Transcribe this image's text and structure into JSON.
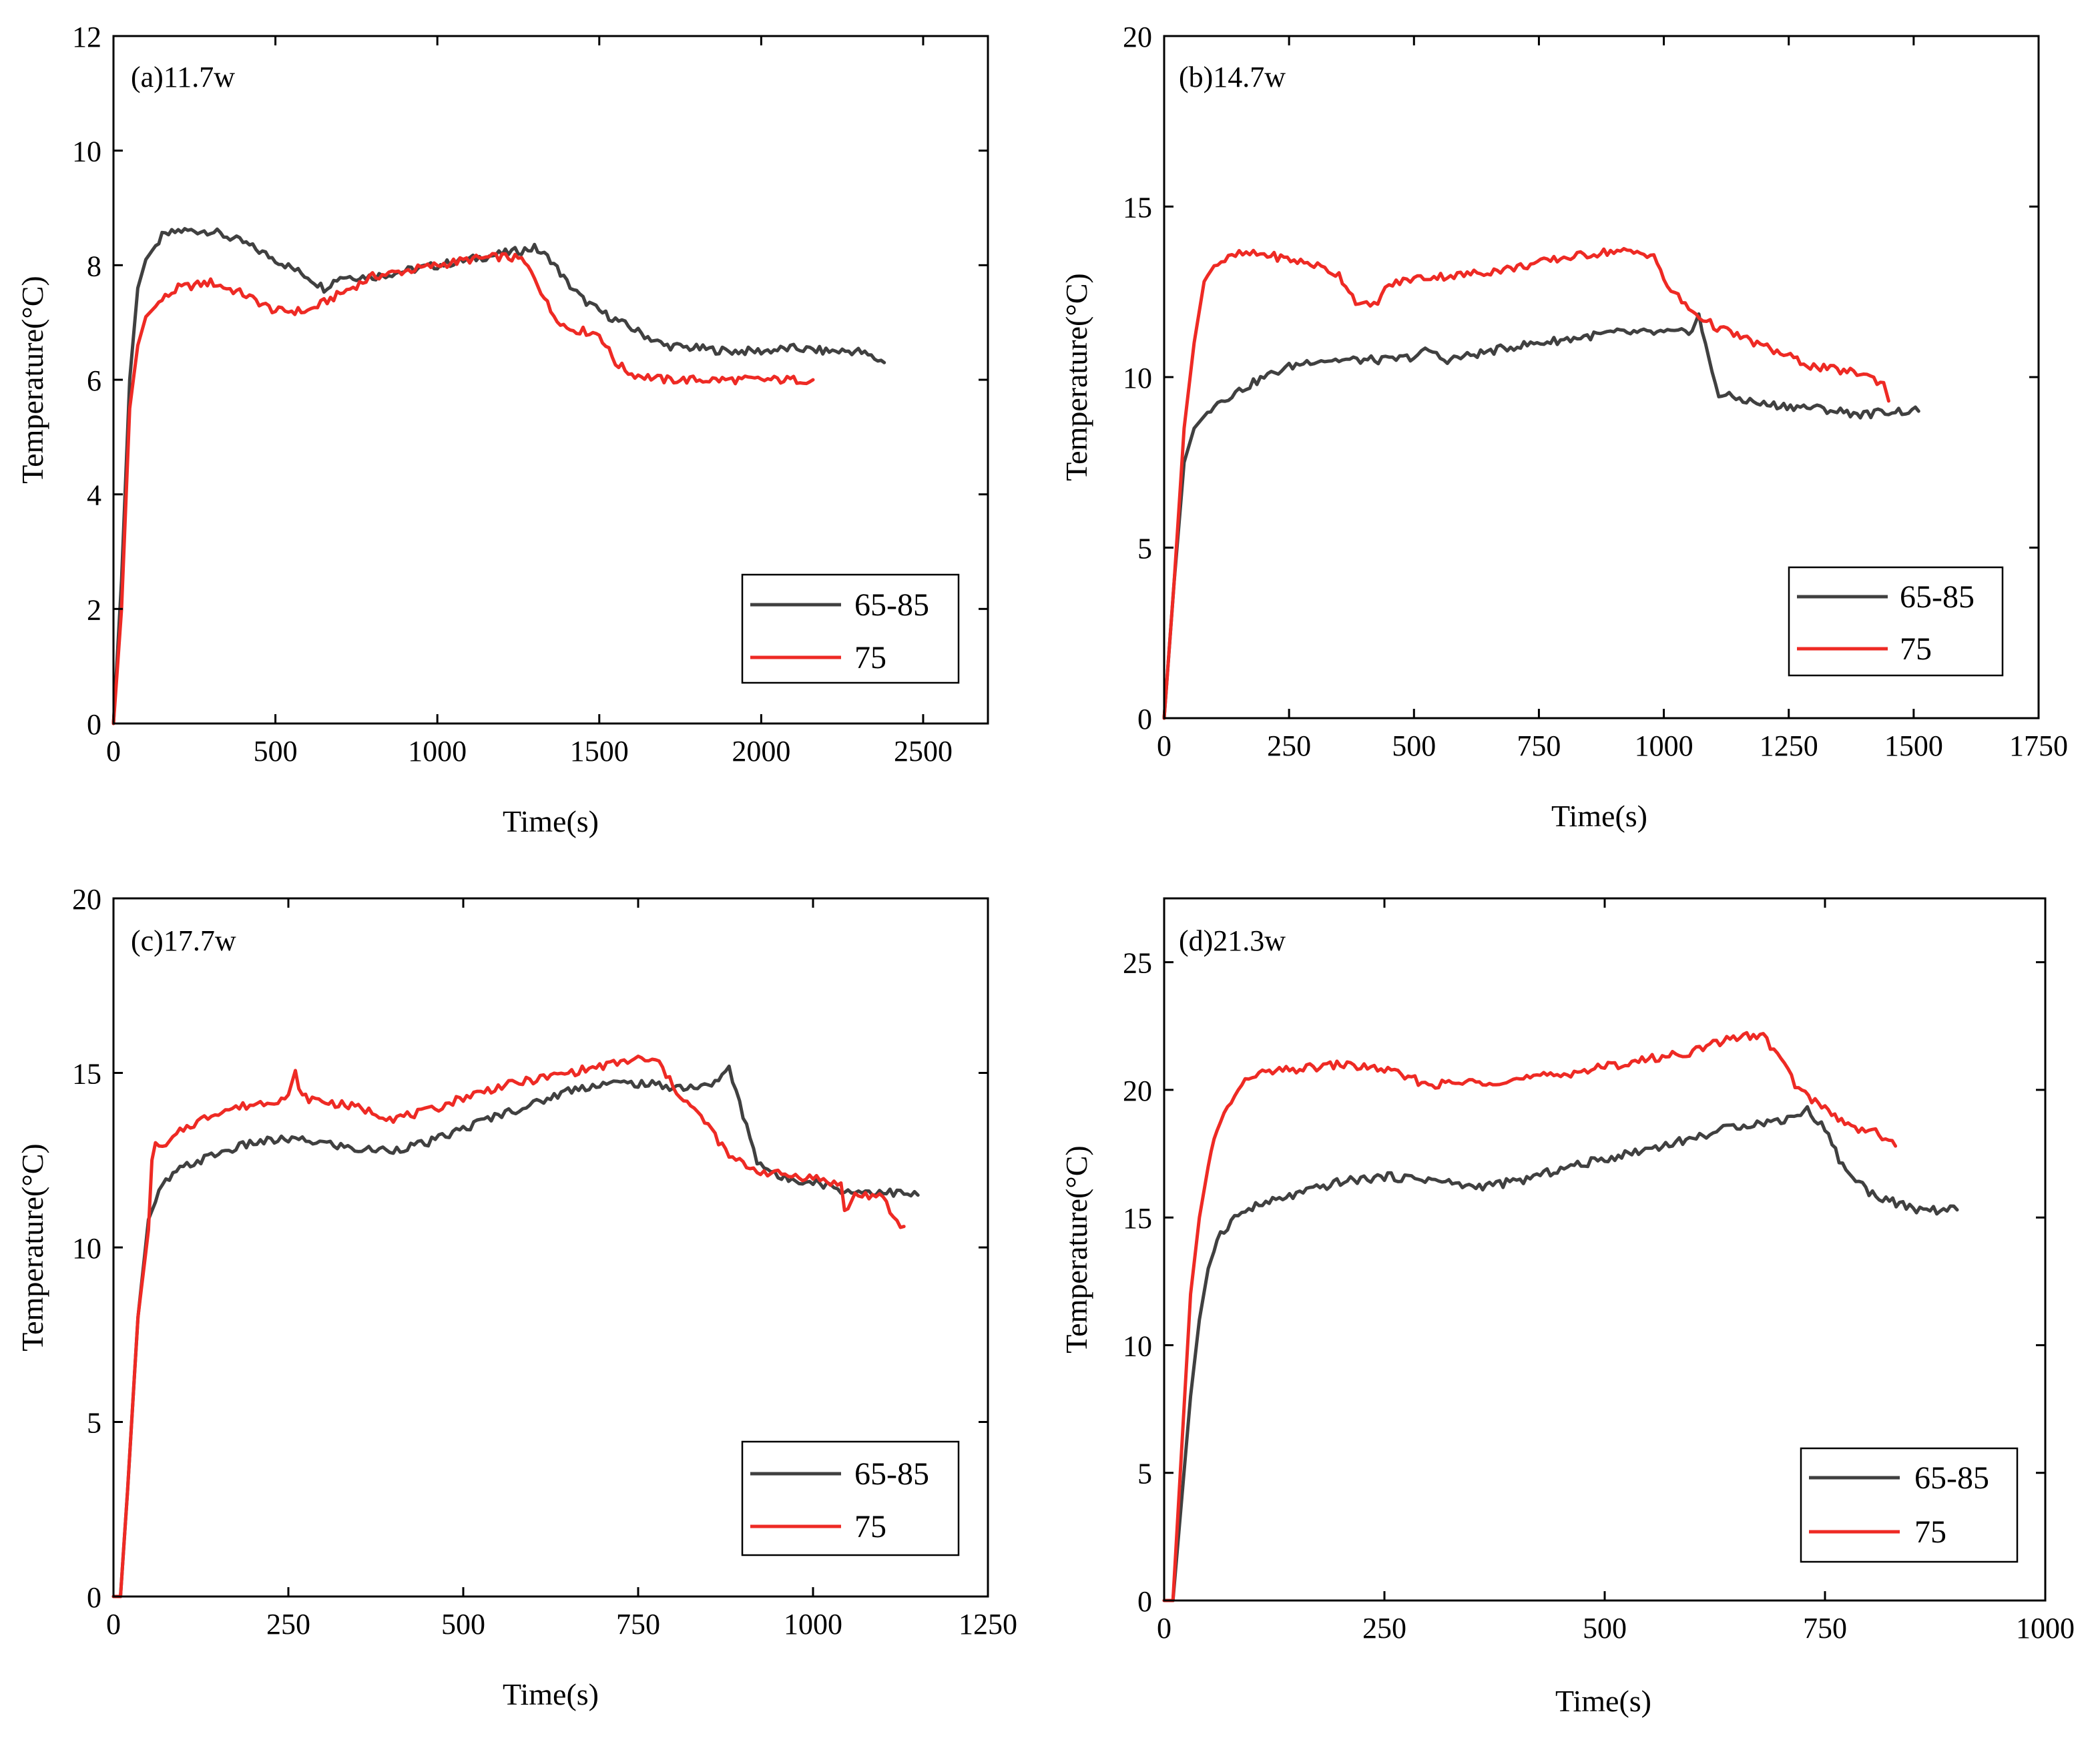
{
  "chart_data": [
    {
      "type": "line",
      "panel_label": "(a)11.7w",
      "xlabel": "Time(s)",
      "ylabel": "Temperature(°C)",
      "xlim": [
        0,
        2700
      ],
      "ylim": [
        0,
        12
      ],
      "xticks": [
        0,
        500,
        1000,
        1500,
        2000,
        2500
      ],
      "yticks": [
        0,
        2,
        4,
        6,
        8,
        10,
        12
      ],
      "legend_position": "bottom-right",
      "series": [
        {
          "name": "65-85",
          "color": "#404040",
          "points": [
            [
              0,
              0
            ],
            [
              25,
              2.5
            ],
            [
              50,
              6.0
            ],
            [
              75,
              7.6
            ],
            [
              100,
              8.1
            ],
            [
              150,
              8.5
            ],
            [
              200,
              8.6
            ],
            [
              300,
              8.6
            ],
            [
              400,
              8.4
            ],
            [
              500,
              8.1
            ],
            [
              600,
              7.8
            ],
            [
              650,
              7.6
            ],
            [
              700,
              7.8
            ],
            [
              800,
              7.8
            ],
            [
              900,
              7.9
            ],
            [
              1000,
              8.0
            ],
            [
              1100,
              8.1
            ],
            [
              1200,
              8.2
            ],
            [
              1300,
              8.3
            ],
            [
              1350,
              8.1
            ],
            [
              1400,
              7.7
            ],
            [
              1450,
              7.4
            ],
            [
              1500,
              7.2
            ],
            [
              1600,
              6.9
            ],
            [
              1700,
              6.6
            ],
            [
              1800,
              6.55
            ],
            [
              1900,
              6.5
            ],
            [
              2000,
              6.5
            ],
            [
              2100,
              6.55
            ],
            [
              2200,
              6.5
            ],
            [
              2300,
              6.5
            ],
            [
              2380,
              6.3
            ]
          ]
        },
        {
          "name": "75",
          "color": "#ee2a24",
          "points": [
            [
              0,
              0
            ],
            [
              25,
              2.0
            ],
            [
              50,
              5.5
            ],
            [
              75,
              6.6
            ],
            [
              100,
              7.1
            ],
            [
              150,
              7.4
            ],
            [
              200,
              7.6
            ],
            [
              300,
              7.7
            ],
            [
              400,
              7.5
            ],
            [
              500,
              7.2
            ],
            [
              600,
              7.2
            ],
            [
              700,
              7.5
            ],
            [
              800,
              7.8
            ],
            [
              900,
              7.9
            ],
            [
              1000,
              8.0
            ],
            [
              1100,
              8.1
            ],
            [
              1200,
              8.15
            ],
            [
              1260,
              8.1
            ],
            [
              1300,
              7.8
            ],
            [
              1350,
              7.2
            ],
            [
              1400,
              6.9
            ],
            [
              1500,
              6.8
            ],
            [
              1550,
              6.3
            ],
            [
              1600,
              6.1
            ],
            [
              1700,
              6.0
            ],
            [
              1800,
              6.0
            ],
            [
              1900,
              6.0
            ],
            [
              2000,
              6.0
            ],
            [
              2100,
              6.0
            ],
            [
              2160,
              6.0
            ]
          ]
        }
      ]
    },
    {
      "type": "line",
      "panel_label": "(b)14.7w",
      "xlabel": "Time(s)",
      "ylabel": "Temperature(°C)",
      "xlim": [
        0,
        1750
      ],
      "ylim": [
        0,
        20
      ],
      "xticks": [
        0,
        250,
        500,
        750,
        1000,
        1250,
        1500,
        1750
      ],
      "yticks": [
        0,
        5,
        10,
        15,
        20
      ],
      "legend_position": "bottom-right",
      "series": [
        {
          "name": "65-85",
          "color": "#404040",
          "points": [
            [
              0,
              0
            ],
            [
              20,
              4.0
            ],
            [
              40,
              7.5
            ],
            [
              60,
              8.5
            ],
            [
              100,
              9.2
            ],
            [
              150,
              9.6
            ],
            [
              200,
              10.0
            ],
            [
              250,
              10.3
            ],
            [
              300,
              10.5
            ],
            [
              350,
              10.5
            ],
            [
              400,
              10.5
            ],
            [
              450,
              10.5
            ],
            [
              500,
              10.6
            ],
            [
              530,
              10.8
            ],
            [
              560,
              10.5
            ],
            [
              600,
              10.6
            ],
            [
              700,
              10.9
            ],
            [
              800,
              11.1
            ],
            [
              900,
              11.3
            ],
            [
              1000,
              11.3
            ],
            [
              1050,
              11.3
            ],
            [
              1070,
              11.8
            ],
            [
              1090,
              10.5
            ],
            [
              1110,
              9.5
            ],
            [
              1200,
              9.2
            ],
            [
              1300,
              9.1
            ],
            [
              1400,
              8.9
            ],
            [
              1450,
              9.0
            ],
            [
              1510,
              9.0
            ]
          ]
        },
        {
          "name": "75",
          "color": "#ee2a24",
          "points": [
            [
              0,
              0
            ],
            [
              20,
              4.0
            ],
            [
              40,
              8.5
            ],
            [
              60,
              11.0
            ],
            [
              80,
              12.8
            ],
            [
              100,
              13.3
            ],
            [
              150,
              13.6
            ],
            [
              200,
              13.6
            ],
            [
              300,
              13.3
            ],
            [
              350,
              13.0
            ],
            [
              390,
              12.1
            ],
            [
              420,
              12.1
            ],
            [
              450,
              12.7
            ],
            [
              500,
              12.9
            ],
            [
              600,
              13.0
            ],
            [
              700,
              13.2
            ],
            [
              800,
              13.5
            ],
            [
              900,
              13.7
            ],
            [
              980,
              13.6
            ],
            [
              1000,
              12.8
            ],
            [
              1050,
              12.0
            ],
            [
              1100,
              11.5
            ],
            [
              1200,
              10.9
            ],
            [
              1300,
              10.3
            ],
            [
              1400,
              10.1
            ],
            [
              1440,
              9.8
            ],
            [
              1450,
              9.3
            ]
          ]
        }
      ]
    },
    {
      "type": "line",
      "panel_label": "(c)17.7w",
      "xlabel": "Time(s)",
      "ylabel": "Temperature(°C)",
      "xlim": [
        0,
        1250
      ],
      "ylim": [
        0,
        20
      ],
      "xticks": [
        0,
        250,
        500,
        750,
        1000,
        1250
      ],
      "yticks": [
        0,
        5,
        10,
        15,
        20
      ],
      "legend_position": "bottom-right",
      "series": [
        {
          "name": "65-85",
          "color": "#404040",
          "points": [
            [
              0,
              0
            ],
            [
              10,
              0
            ],
            [
              20,
              3.0
            ],
            [
              35,
              8.0
            ],
            [
              50,
              10.8
            ],
            [
              70,
              11.8
            ],
            [
              100,
              12.3
            ],
            [
              150,
              12.7
            ],
            [
              200,
              13.0
            ],
            [
              250,
              13.1
            ],
            [
              300,
              13.0
            ],
            [
              350,
              12.8
            ],
            [
              400,
              12.8
            ],
            [
              450,
              13.0
            ],
            [
              500,
              13.4
            ],
            [
              550,
              13.8
            ],
            [
              600,
              14.1
            ],
            [
              650,
              14.5
            ],
            [
              700,
              14.7
            ],
            [
              750,
              14.7
            ],
            [
              800,
              14.6
            ],
            [
              850,
              14.6
            ],
            [
              880,
              15.1
            ],
            [
              900,
              13.8
            ],
            [
              920,
              12.5
            ],
            [
              950,
              12.0
            ],
            [
              1000,
              11.9
            ],
            [
              1050,
              11.6
            ],
            [
              1100,
              11.6
            ],
            [
              1150,
              11.5
            ]
          ]
        },
        {
          "name": "75",
          "color": "#ee2a24",
          "points": [
            [
              0,
              0
            ],
            [
              10,
              0
            ],
            [
              20,
              3.0
            ],
            [
              35,
              8.0
            ],
            [
              50,
              10.5
            ],
            [
              55,
              12.5
            ],
            [
              60,
              13.0
            ],
            [
              70,
              12.8
            ],
            [
              100,
              13.4
            ],
            [
              150,
              13.9
            ],
            [
              200,
              14.1
            ],
            [
              250,
              14.3
            ],
            [
              260,
              15.0
            ],
            [
              270,
              14.3
            ],
            [
              350,
              14.0
            ],
            [
              400,
              13.7
            ],
            [
              450,
              13.9
            ],
            [
              500,
              14.3
            ],
            [
              550,
              14.6
            ],
            [
              600,
              14.8
            ],
            [
              650,
              15.0
            ],
            [
              700,
              15.2
            ],
            [
              750,
              15.4
            ],
            [
              780,
              15.3
            ],
            [
              800,
              14.6
            ],
            [
              850,
              13.5
            ],
            [
              880,
              12.6
            ],
            [
              920,
              12.2
            ],
            [
              950,
              12.1
            ],
            [
              1000,
              12.0
            ],
            [
              1040,
              11.8
            ],
            [
              1045,
              11.0
            ],
            [
              1060,
              11.5
            ],
            [
              1080,
              11.5
            ],
            [
              1100,
              11.4
            ],
            [
              1120,
              10.7
            ],
            [
              1130,
              10.6
            ]
          ]
        }
      ]
    },
    {
      "type": "line",
      "panel_label": "(d)21.3w",
      "xlabel": "Time(s)",
      "ylabel": "Temperature(°C)",
      "xlim": [
        0,
        1000
      ],
      "ylim": [
        0,
        27.5
      ],
      "xticks": [
        0,
        250,
        500,
        750,
        1000
      ],
      "yticks": [
        0,
        5,
        10,
        15,
        20,
        25
      ],
      "legend_position": "bottom-right",
      "series": [
        {
          "name": "65-85",
          "color": "#404040",
          "points": [
            [
              0,
              0
            ],
            [
              10,
              0
            ],
            [
              20,
              4.0
            ],
            [
              30,
              8.0
            ],
            [
              40,
              11.0
            ],
            [
              50,
              13.0
            ],
            [
              60,
              14.2
            ],
            [
              80,
              15.0
            ],
            [
              100,
              15.4
            ],
            [
              150,
              15.9
            ],
            [
              200,
              16.4
            ],
            [
              250,
              16.6
            ],
            [
              300,
              16.5
            ],
            [
              350,
              16.2
            ],
            [
              400,
              16.4
            ],
            [
              450,
              16.9
            ],
            [
              500,
              17.3
            ],
            [
              550,
              17.7
            ],
            [
              600,
              18.1
            ],
            [
              650,
              18.6
            ],
            [
              700,
              18.8
            ],
            [
              730,
              19.2
            ],
            [
              750,
              18.5
            ],
            [
              770,
              17.0
            ],
            [
              800,
              16.0
            ],
            [
              850,
              15.3
            ],
            [
              900,
              15.3
            ]
          ]
        },
        {
          "name": "75",
          "color": "#ee2a24",
          "points": [
            [
              0,
              0
            ],
            [
              10,
              0
            ],
            [
              20,
              6.0
            ],
            [
              30,
              12.0
            ],
            [
              40,
              15.0
            ],
            [
              50,
              17.0
            ],
            [
              60,
              18.5
            ],
            [
              80,
              19.8
            ],
            [
              100,
              20.6
            ],
            [
              150,
              20.8
            ],
            [
              200,
              21.0
            ],
            [
              250,
              20.8
            ],
            [
              300,
              20.2
            ],
            [
              350,
              20.3
            ],
            [
              400,
              20.4
            ],
            [
              450,
              20.6
            ],
            [
              500,
              20.9
            ],
            [
              550,
              21.2
            ],
            [
              600,
              21.5
            ],
            [
              650,
              22.1
            ],
            [
              680,
              22.1
            ],
            [
              700,
              21.2
            ],
            [
              720,
              20.0
            ],
            [
              750,
              19.3
            ],
            [
              780,
              18.5
            ],
            [
              800,
              18.5
            ],
            [
              830,
              17.8
            ]
          ]
        }
      ]
    }
  ]
}
